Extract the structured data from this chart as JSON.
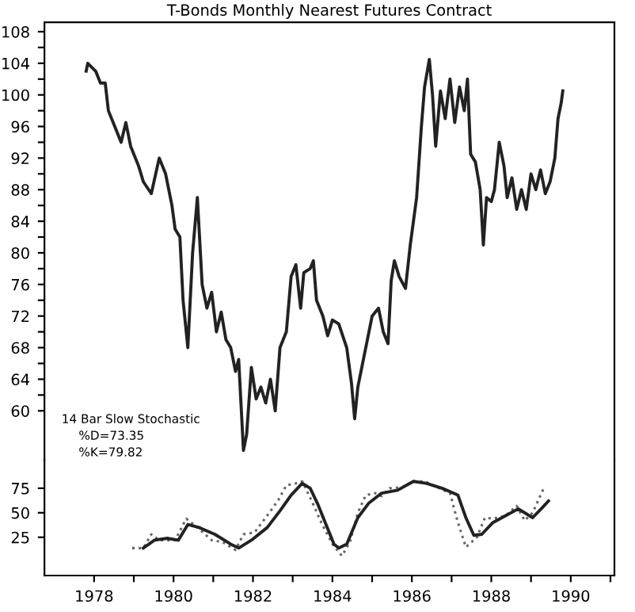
{
  "chart_data": [
    {
      "type": "line",
      "title": "T-Bonds Monthly Nearest Futures Contract",
      "tick_labels": "y",
      "grid": false,
      "legend": false,
      "annotations": [
        "14 Bar Slow Stochastic",
        "%D=73.35",
        "%K=79.82"
      ],
      "xlim": [
        1976.75,
        1991.1
      ],
      "xticks": [
        {
          "value": 1978,
          "label": null
        },
        {
          "value": 1980,
          "label": null
        },
        {
          "value": 1982,
          "label": null
        },
        {
          "value": 1984,
          "label": null
        },
        {
          "value": 1986,
          "label": null
        },
        {
          "value": 1988,
          "label": null
        },
        {
          "value": 1990,
          "label": null
        }
      ],
      "ylim": [
        53.8,
        109.2
      ],
      "yticks": [
        60,
        {
          "value": 62,
          "label": null
        },
        64,
        {
          "value": 66,
          "label": null
        },
        68,
        {
          "value": 70,
          "label": null
        },
        72,
        {
          "value": 74,
          "label": null
        },
        76,
        {
          "value": 78,
          "label": null
        },
        80,
        {
          "value": 82,
          "label": null
        },
        84,
        {
          "value": 86,
          "label": null
        },
        88,
        {
          "value": 90,
          "label": null
        },
        92,
        {
          "value": 94,
          "label": null
        },
        96,
        {
          "value": 98,
          "label": null
        },
        100,
        {
          "value": 102,
          "label": null
        },
        104,
        {
          "value": 106,
          "label": null
        },
        108
      ],
      "series": [
        {
          "color": "#222222",
          "line_style": "solid",
          "x": [
            1977.8,
            1977.84,
            1978.04,
            1978.16,
            1978.28,
            1978.36,
            1978.52,
            1978.68,
            1978.8,
            1978.92,
            1979.12,
            1979.24,
            1979.44,
            1979.64,
            1979.8,
            1979.96,
            1980.04,
            1980.16,
            1980.24,
            1980.36,
            1980.48,
            1980.6,
            1980.72,
            1980.84,
            1980.96,
            1981.08,
            1981.2,
            1981.32,
            1981.44,
            1981.56,
            1981.64,
            1981.76,
            1981.84,
            1981.96,
            1982.08,
            1982.2,
            1982.32,
            1982.44,
            1982.56,
            1982.68,
            1982.84,
            1982.96,
            1983.08,
            1983.2,
            1983.28,
            1983.44,
            1983.52,
            1983.6,
            1983.76,
            1983.88,
            1984.0,
            1984.16,
            1984.36,
            1984.48,
            1984.56,
            1984.64,
            1984.76,
            1984.88,
            1985.0,
            1985.16,
            1985.28,
            1985.4,
            1985.48,
            1985.56,
            1985.68,
            1985.84,
            1985.96,
            1986.12,
            1986.24,
            1986.32,
            1986.44,
            1986.52,
            1986.6,
            1986.72,
            1986.84,
            1986.96,
            1987.08,
            1987.2,
            1987.32,
            1987.4,
            1987.48,
            1987.6,
            1987.72,
            1987.8,
            1987.88,
            1988.0,
            1988.08,
            1988.2,
            1988.32,
            1988.4,
            1988.52,
            1988.64,
            1988.76,
            1988.88,
            1989.0,
            1989.12,
            1989.24,
            1989.36,
            1989.48,
            1989.6,
            1989.68,
            1989.76,
            1989.8
          ],
          "values": [
            103,
            104,
            103,
            101.5,
            101.5,
            98,
            96,
            94,
            96.5,
            93.5,
            91,
            89,
            87.5,
            92,
            90,
            86,
            83,
            82,
            74,
            68,
            80,
            87,
            76,
            73,
            75,
            70,
            72.5,
            69,
            68,
            65,
            66.5,
            55,
            57,
            65.5,
            61.5,
            63,
            61,
            64,
            60,
            68,
            70,
            77,
            78.5,
            73,
            77.5,
            78,
            79,
            74,
            72,
            69.5,
            71.5,
            71,
            68,
            63.5,
            59,
            63,
            66,
            69,
            72,
            73,
            70,
            68.5,
            76.5,
            79,
            77,
            75.5,
            81,
            87,
            96,
            101,
            104.5,
            100,
            93.5,
            100.5,
            97,
            102,
            96.5,
            101,
            98,
            102,
            92.5,
            91.5,
            88,
            81,
            87,
            86.5,
            88,
            94,
            91,
            87,
            89.5,
            85.5,
            88,
            85.5,
            90,
            88,
            90.5,
            87.5,
            89,
            92,
            97,
            99,
            100.5
          ]
        }
      ]
    },
    {
      "type": "line",
      "xlim": [
        1976.75,
        1991.1
      ],
      "xticks": [
        1978,
        {
          "value": 1979,
          "label": null
        },
        1980,
        {
          "value": 1981,
          "label": null
        },
        1982,
        {
          "value": 1983,
          "label": null
        },
        1984,
        {
          "value": 1985,
          "label": null
        },
        1986,
        {
          "value": 1987,
          "label": null
        },
        1988,
        {
          "value": 1989,
          "label": null
        },
        1990,
        {
          "value": 1991,
          "label": null
        }
      ],
      "ylim": [
        -14,
        104
      ],
      "yticks": [
        25,
        50,
        75
      ],
      "grid": false,
      "legend": false,
      "series": [
        {
          "color": "#666666",
          "line_style": "dotted",
          "x": [
            1978.96,
            1979.24,
            1979.44,
            1979.64,
            1980.04,
            1980.32,
            1980.6,
            1980.96,
            1981.24,
            1981.56,
            1981.76,
            1982.04,
            1982.32,
            1982.64,
            1982.84,
            1983.08,
            1983.24,
            1983.48,
            1983.72,
            1984.0,
            1984.24,
            1984.44,
            1984.64,
            1984.84,
            1985.08,
            1985.24,
            1985.44,
            1985.76,
            1986.04,
            1986.32,
            1986.64,
            1986.96,
            1987.16,
            1987.36,
            1987.64,
            1987.84,
            1988.04,
            1988.36,
            1988.64,
            1988.84,
            1989.04,
            1989.32
          ],
          "values": [
            14,
            14,
            28,
            22,
            22,
            44,
            35,
            22,
            20,
            12,
            28,
            30,
            45,
            63,
            78,
            80,
            82,
            62,
            40,
            18,
            6,
            20,
            50,
            68,
            70,
            67,
            75,
            76,
            82,
            82,
            76,
            70,
            40,
            15,
            25,
            45,
            44,
            47,
            57,
            42,
            50,
            75
          ]
        },
        {
          "color": "#222222",
          "line_style": "solid",
          "x": [
            1979.24,
            1979.52,
            1979.84,
            1980.12,
            1980.36,
            1980.64,
            1981.04,
            1981.44,
            1981.64,
            1981.96,
            1982.36,
            1982.68,
            1982.96,
            1983.24,
            1983.44,
            1983.64,
            1983.84,
            1984.04,
            1984.16,
            1984.36,
            1984.64,
            1984.92,
            1985.24,
            1985.64,
            1986.04,
            1986.36,
            1986.76,
            1987.16,
            1987.36,
            1987.56,
            1987.76,
            1988.04,
            1988.36,
            1988.68,
            1989.04,
            1989.28,
            1989.44
          ],
          "values": [
            14,
            22,
            24,
            22,
            38,
            35,
            28,
            18,
            14,
            22,
            35,
            52,
            68,
            80,
            75,
            58,
            38,
            18,
            14,
            18,
            45,
            60,
            70,
            73,
            82,
            80,
            75,
            68,
            45,
            27,
            28,
            40,
            47,
            54,
            45,
            55,
            62
          ]
        }
      ]
    }
  ]
}
